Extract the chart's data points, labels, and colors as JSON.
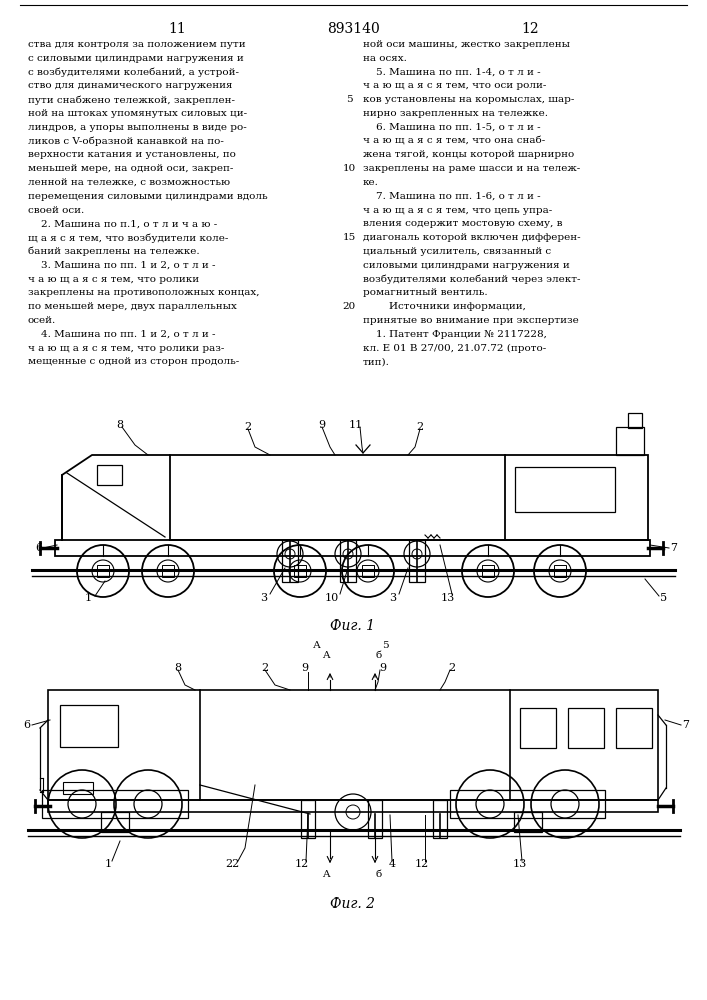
{
  "page_number_left": "11",
  "page_number_right": "12",
  "patent_number": "893140",
  "bg_color": "#ffffff",
  "text_color": "#000000",
  "text_left_col": [
    "ства для контроля за положением пути",
    "с силовыми цилиндрами нагружения и",
    "с возбудителями колебаний, а устрой-",
    "ство для динамического нагружения",
    "пути снабжено тележкой, закреплен-",
    "ной на штоках упомянутых силовых ци-",
    "линдров, а упоры выполнены в виде ро-",
    "ликов с V-образной канавкой на по-",
    "верхности катания и установлены, по",
    "меньшей мере, на одной оси, закреп-",
    "ленной на тележке, с возможностью",
    "перемещения силовыми цилиндрами вдоль",
    "своей оси.",
    "    2. Машина по п.1, о т л и ч а ю -",
    "щ а я с я тем, что возбудители коле-",
    "баний закреплены на тележке.",
    "    3. Машина по пп. 1 и 2, о т л и -",
    "ч а ю щ а я с я тем, что ролики",
    "закреплены на противоположных концах,",
    "по меньшей мере, двух параллельных",
    "осей.",
    "    4. Машина по пп. 1 и 2, о т л и -",
    "ч а ю щ а я с я тем, что ролики раз-",
    "мещенные с одной из сторон продоль-"
  ],
  "text_right_col": [
    "ной оси машины, жестко закреплены",
    "на осях.",
    "    5. Машина по пп. 1-4, о т л и -",
    "ч а ю щ а я с я тем, что оси роли-",
    "ков установлены на коромыслах, шар-",
    "нирно закрепленных на тележке.",
    "    6. Машина по пп. 1-5, о т л и -",
    "ч а ю щ а я с я тем, что она снаб-",
    "жена тягой, концы которой шарнирно",
    "закреплены на раме шасси и на тележ-",
    "ке.",
    "    7. Машина по пп. 1-6, о т л и -",
    "ч а ю щ а я с я тем, что цепь упра-",
    "вления содержит мостовую схему, в",
    "диагональ которой включен дифферен-",
    "циальный усилитель, связанный с",
    "силовыми цилиндрами нагружения и",
    "возбудителями колебаний через элект-",
    "ромагнитный вентиль.",
    "        Источники информации,",
    "принятые во внимание при экспертизе",
    "    1. Патент Франции № 2117228,",
    "кл. Е 01 В 27/00, 21.07.72 (прото-",
    "тип)."
  ],
  "line_numbers": [
    [
      5,
      5
    ],
    [
      10,
      10
    ],
    [
      15,
      15
    ],
    [
      20,
      20
    ]
  ],
  "fig1_caption": "Фиг. 1",
  "fig2_caption": "Фиг. 2"
}
